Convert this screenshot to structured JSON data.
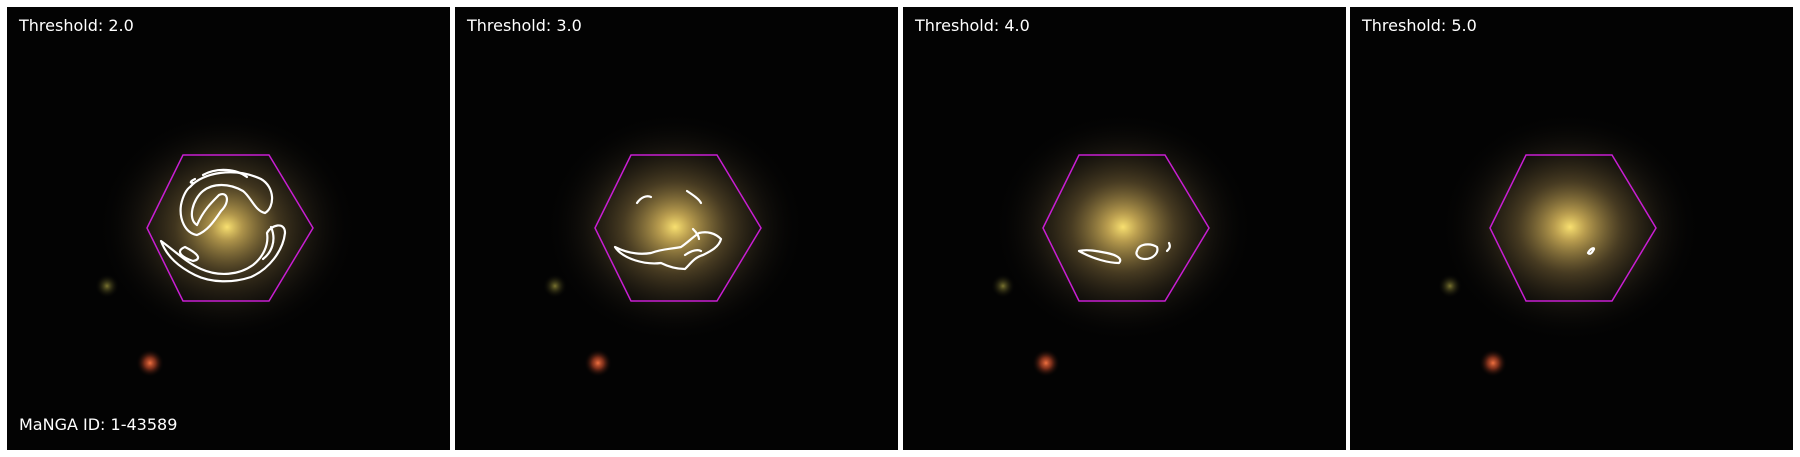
{
  "figure": {
    "galaxy_id_label": "MaNGA ID: 1-43589",
    "colors": {
      "background": "#030303",
      "hexagon": "#c81ed2",
      "contour": "#ffffff",
      "galaxy_core": "#f4dc64",
      "galaxy_halo": "#b49650",
      "red_star": "#c84628",
      "olive_star": "#6e6a2a"
    },
    "panels": [
      {
        "label": "Threshold: 2.0"
      },
      {
        "label": "Threshold: 3.0"
      },
      {
        "label": "Threshold: 4.0"
      },
      {
        "label": "Threshold: 5.0"
      }
    ]
  }
}
